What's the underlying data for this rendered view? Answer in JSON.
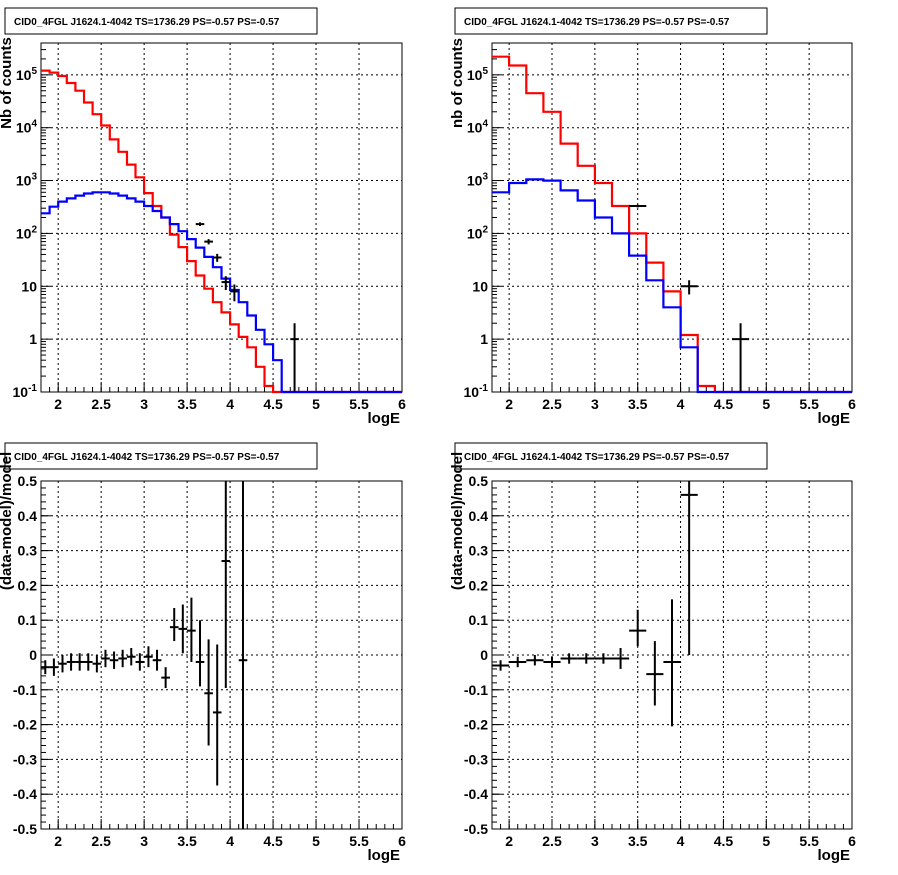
{
  "chart_data": [
    {
      "id": "counts_a",
      "type": "histogram",
      "title": "CID0_4FGL J1624.1-4042 TS=1736.29 PS=-0.57 PS=-0.57",
      "xlabel": "logE",
      "ylabel": "Nb of counts",
      "xlim": [
        1.8,
        6.0
      ],
      "ylim": [
        0.1,
        400000
      ],
      "log_y": true,
      "grid": true,
      "x_tick_labels": [
        "2",
        "2.5",
        "3",
        "3.5",
        "4",
        "4.5",
        "5",
        "5.5",
        "6"
      ],
      "y_tick_labels": [
        "10^-1",
        "1",
        "10",
        "10^2",
        "10^3",
        "10^4",
        "10^5"
      ],
      "bin_edges": [
        1.8,
        1.9,
        2.0,
        2.1,
        2.2,
        2.3,
        2.4,
        2.5,
        2.6,
        2.7,
        2.8,
        2.9,
        3.0,
        3.1,
        3.2,
        3.3,
        3.4,
        3.5,
        3.6,
        3.7,
        3.8,
        3.9,
        4.0,
        4.1,
        4.2,
        4.3,
        4.4,
        4.5,
        4.6,
        4.7,
        4.8,
        4.9,
        5.0,
        5.1,
        5.2,
        5.3,
        5.4,
        5.5,
        5.6,
        5.7,
        5.8,
        5.9,
        6.0
      ],
      "series": [
        {
          "color": "#ff0000",
          "values": [
            120000,
            110000,
            95000,
            70000,
            50000,
            30000,
            18000,
            11000,
            6000,
            3500,
            2000,
            1150,
            580,
            330,
            200,
            95,
            55,
            30,
            16,
            9,
            5,
            3.2,
            1.9,
            1.1,
            0.7,
            0.3,
            0.13,
            0.1,
            0.1,
            0.1,
            0.1,
            0.1,
            0.1,
            0.1,
            0.1,
            0.1,
            0.1,
            0.1,
            0.1,
            0.1,
            0.1,
            0.1
          ]
        },
        {
          "color": "#0000ff",
          "values": [
            240,
            320,
            400,
            460,
            520,
            570,
            600,
            600,
            570,
            520,
            460,
            400,
            330,
            265,
            200,
            150,
            110,
            78,
            54,
            36,
            23,
            14,
            8.5,
            5,
            2.8,
            1.5,
            0.8,
            0.4,
            0.1,
            0.1,
            0.1,
            0.1,
            0.1,
            0.1,
            0.1,
            0.1,
            0.1,
            0.1,
            0.1,
            0.1,
            0.1,
            0.1
          ]
        }
      ],
      "data_points": [
        {
          "x": 3.65,
          "y": 150,
          "xerr": 0.05,
          "ylo": 138,
          "yhi": 162
        },
        {
          "x": 3.75,
          "y": 70,
          "xerr": 0.05,
          "ylo": 62,
          "yhi": 78
        },
        {
          "x": 3.85,
          "y": 35,
          "xerr": 0.05,
          "ylo": 29,
          "yhi": 41
        },
        {
          "x": 3.95,
          "y": 12,
          "xerr": 0.05,
          "ylo": 8.5,
          "yhi": 15.5
        },
        {
          "x": 4.05,
          "y": 8,
          "xerr": 0.05,
          "ylo": 5.2,
          "yhi": 10.8
        },
        {
          "x": 4.75,
          "y": 1,
          "xerr": 0.05,
          "ylo": 0.1,
          "yhi": 2
        }
      ]
    },
    {
      "id": "counts_b",
      "type": "histogram",
      "title": "CID0_4FGL J1624.1-4042 TS=1736.29 PS=-0.57 PS=-0.57",
      "xlabel": "logE",
      "ylabel": "nb of counts",
      "xlim": [
        1.8,
        6.0
      ],
      "ylim": [
        0.1,
        400000
      ],
      "log_y": true,
      "grid": true,
      "x_tick_labels": [
        "2",
        "2.5",
        "3",
        "3.5",
        "4",
        "4.5",
        "5",
        "5.5",
        "6"
      ],
      "y_tick_labels": [
        "10^-1",
        "1",
        "10",
        "10^2",
        "10^3",
        "10^4",
        "10^5"
      ],
      "bin_edges": [
        1.8,
        2.0,
        2.2,
        2.4,
        2.6,
        2.8,
        3.0,
        3.2,
        3.4,
        3.6,
        3.8,
        4.0,
        4.2,
        4.4,
        4.6,
        4.8,
        5.0,
        5.2,
        5.4,
        5.6,
        5.8,
        6.0
      ],
      "series": [
        {
          "color": "#ff0000",
          "values": [
            220000,
            150000,
            45000,
            20000,
            5000,
            1900,
            900,
            330,
            100,
            28,
            8,
            1.2,
            0.13,
            0.1,
            0.1,
            0.1,
            0.1,
            0.1,
            0.1,
            0.1,
            0.1
          ]
        },
        {
          "color": "#0000ff",
          "values": [
            600,
            900,
            1050,
            1000,
            650,
            420,
            200,
            100,
            38,
            13,
            4,
            0.7,
            0.1,
            0.1,
            0.1,
            0.1,
            0.1,
            0.1,
            0.1,
            0.1,
            0.1
          ]
        }
      ],
      "data_points": [
        {
          "x": 3.5,
          "y": 330,
          "xerr": 0.1,
          "ylo": 310,
          "yhi": 350
        },
        {
          "x": 4.1,
          "y": 10,
          "xerr": 0.1,
          "ylo": 7,
          "yhi": 13
        },
        {
          "x": 4.7,
          "y": 1,
          "xerr": 0.1,
          "ylo": 0.1,
          "yhi": 2
        }
      ]
    },
    {
      "id": "residuals_a",
      "type": "scatter",
      "title": "CID0_4FGL J1624.1-4042 TS=1736.29 PS=-0.57 PS=-0.57",
      "xlabel": "logE",
      "ylabel": "(data-model)/model",
      "xlim": [
        1.8,
        6.0
      ],
      "ylim": [
        -0.5,
        0.5
      ],
      "log_y": false,
      "grid": true,
      "x_tick_labels": [
        "2",
        "2.5",
        "3",
        "3.5",
        "4",
        "4.5",
        "5",
        "5.5",
        "6"
      ],
      "y_tick_labels": [
        "-0.5",
        "-0.4",
        "-0.3",
        "-0.2",
        "-0.1",
        "0",
        "0.1",
        "0.2",
        "0.3",
        "0.4",
        "0.5"
      ],
      "data_points": [
        {
          "x": 1.85,
          "y": -0.035,
          "xerr": 0.05,
          "ylo": -0.055,
          "yhi": -0.015
        },
        {
          "x": 1.95,
          "y": -0.035,
          "xerr": 0.05,
          "ylo": -0.06,
          "yhi": -0.01
        },
        {
          "x": 2.05,
          "y": -0.025,
          "xerr": 0.05,
          "ylo": -0.05,
          "yhi": 0.0
        },
        {
          "x": 2.15,
          "y": -0.02,
          "xerr": 0.05,
          "ylo": -0.045,
          "yhi": 0.005
        },
        {
          "x": 2.25,
          "y": -0.02,
          "xerr": 0.05,
          "ylo": -0.045,
          "yhi": 0.005
        },
        {
          "x": 2.35,
          "y": -0.02,
          "xerr": 0.05,
          "ylo": -0.045,
          "yhi": 0.005
        },
        {
          "x": 2.45,
          "y": -0.025,
          "xerr": 0.05,
          "ylo": -0.05,
          "yhi": 0.0
        },
        {
          "x": 2.55,
          "y": -0.01,
          "xerr": 0.05,
          "ylo": -0.035,
          "yhi": 0.015
        },
        {
          "x": 2.65,
          "y": -0.015,
          "xerr": 0.05,
          "ylo": -0.04,
          "yhi": 0.01
        },
        {
          "x": 2.75,
          "y": -0.01,
          "xerr": 0.05,
          "ylo": -0.035,
          "yhi": 0.015
        },
        {
          "x": 2.85,
          "y": -0.005,
          "xerr": 0.05,
          "ylo": -0.03,
          "yhi": 0.02
        },
        {
          "x": 2.95,
          "y": -0.02,
          "xerr": 0.05,
          "ylo": -0.045,
          "yhi": 0.005
        },
        {
          "x": 3.05,
          "y": -0.005,
          "xerr": 0.05,
          "ylo": -0.035,
          "yhi": 0.025
        },
        {
          "x": 3.15,
          "y": -0.015,
          "xerr": 0.05,
          "ylo": -0.045,
          "yhi": 0.015
        },
        {
          "x": 3.25,
          "y": -0.065,
          "xerr": 0.05,
          "ylo": -0.095,
          "yhi": -0.035
        },
        {
          "x": 3.35,
          "y": 0.08,
          "xerr": 0.05,
          "ylo": 0.04,
          "yhi": 0.135
        },
        {
          "x": 3.45,
          "y": 0.075,
          "xerr": 0.05,
          "ylo": 0.005,
          "yhi": 0.145
        },
        {
          "x": 3.55,
          "y": 0.07,
          "xerr": 0.05,
          "ylo": -0.02,
          "yhi": 0.165
        },
        {
          "x": 3.65,
          "y": -0.02,
          "xerr": 0.05,
          "ylo": -0.09,
          "yhi": 0.1
        },
        {
          "x": 3.75,
          "y": -0.11,
          "xerr": 0.05,
          "ylo": -0.26,
          "yhi": 0.045
        },
        {
          "x": 3.85,
          "y": -0.165,
          "xerr": 0.05,
          "ylo": -0.375,
          "yhi": 0.03
        },
        {
          "x": 3.95,
          "y": 0.27,
          "xerr": 0.05,
          "ylo": -0.095,
          "yhi": 0.5
        },
        {
          "x": 4.15,
          "y": -0.015,
          "xerr": 0.05,
          "ylo": -0.5,
          "yhi": 0.5
        }
      ]
    },
    {
      "id": "residuals_b",
      "type": "scatter",
      "title": "CID0_4FGL J1624.1-4042 TS=1736.29 PS=-0.57 PS=-0.57",
      "xlabel": "logE",
      "ylabel": "(data-model)/model",
      "xlim": [
        1.8,
        6.0
      ],
      "ylim": [
        -0.5,
        0.5
      ],
      "log_y": false,
      "grid": true,
      "x_tick_labels": [
        "2",
        "2.5",
        "3",
        "3.5",
        "4",
        "4.5",
        "5",
        "5.5",
        "6"
      ],
      "y_tick_labels": [
        "-0.5",
        "-0.4",
        "-0.3",
        "-0.2",
        "-0.1",
        "0",
        "0.1",
        "0.2",
        "0.3",
        "0.4",
        "0.5"
      ],
      "data_points": [
        {
          "x": 1.9,
          "y": -0.03,
          "xerr": 0.1,
          "ylo": -0.045,
          "yhi": -0.015
        },
        {
          "x": 2.1,
          "y": -0.02,
          "xerr": 0.1,
          "ylo": -0.035,
          "yhi": -0.005
        },
        {
          "x": 2.3,
          "y": -0.015,
          "xerr": 0.1,
          "ylo": -0.03,
          "yhi": 0.0
        },
        {
          "x": 2.5,
          "y": -0.02,
          "xerr": 0.1,
          "ylo": -0.035,
          "yhi": -0.005
        },
        {
          "x": 2.7,
          "y": -0.01,
          "xerr": 0.1,
          "ylo": -0.025,
          "yhi": 0.005
        },
        {
          "x": 2.9,
          "y": -0.01,
          "xerr": 0.1,
          "ylo": -0.025,
          "yhi": 0.005
        },
        {
          "x": 3.1,
          "y": -0.01,
          "xerr": 0.1,
          "ylo": -0.025,
          "yhi": 0.005
        },
        {
          "x": 3.3,
          "y": -0.01,
          "xerr": 0.1,
          "ylo": -0.04,
          "yhi": 0.02
        },
        {
          "x": 3.5,
          "y": 0.07,
          "xerr": 0.1,
          "ylo": 0.025,
          "yhi": 0.13
        },
        {
          "x": 3.7,
          "y": -0.055,
          "xerr": 0.1,
          "ylo": -0.145,
          "yhi": 0.04
        },
        {
          "x": 3.9,
          "y": -0.02,
          "xerr": 0.1,
          "ylo": -0.205,
          "yhi": 0.16
        },
        {
          "x": 4.1,
          "y": 0.46,
          "xerr": 0.1,
          "ylo": 0.0,
          "yhi": 0.5
        }
      ]
    }
  ]
}
